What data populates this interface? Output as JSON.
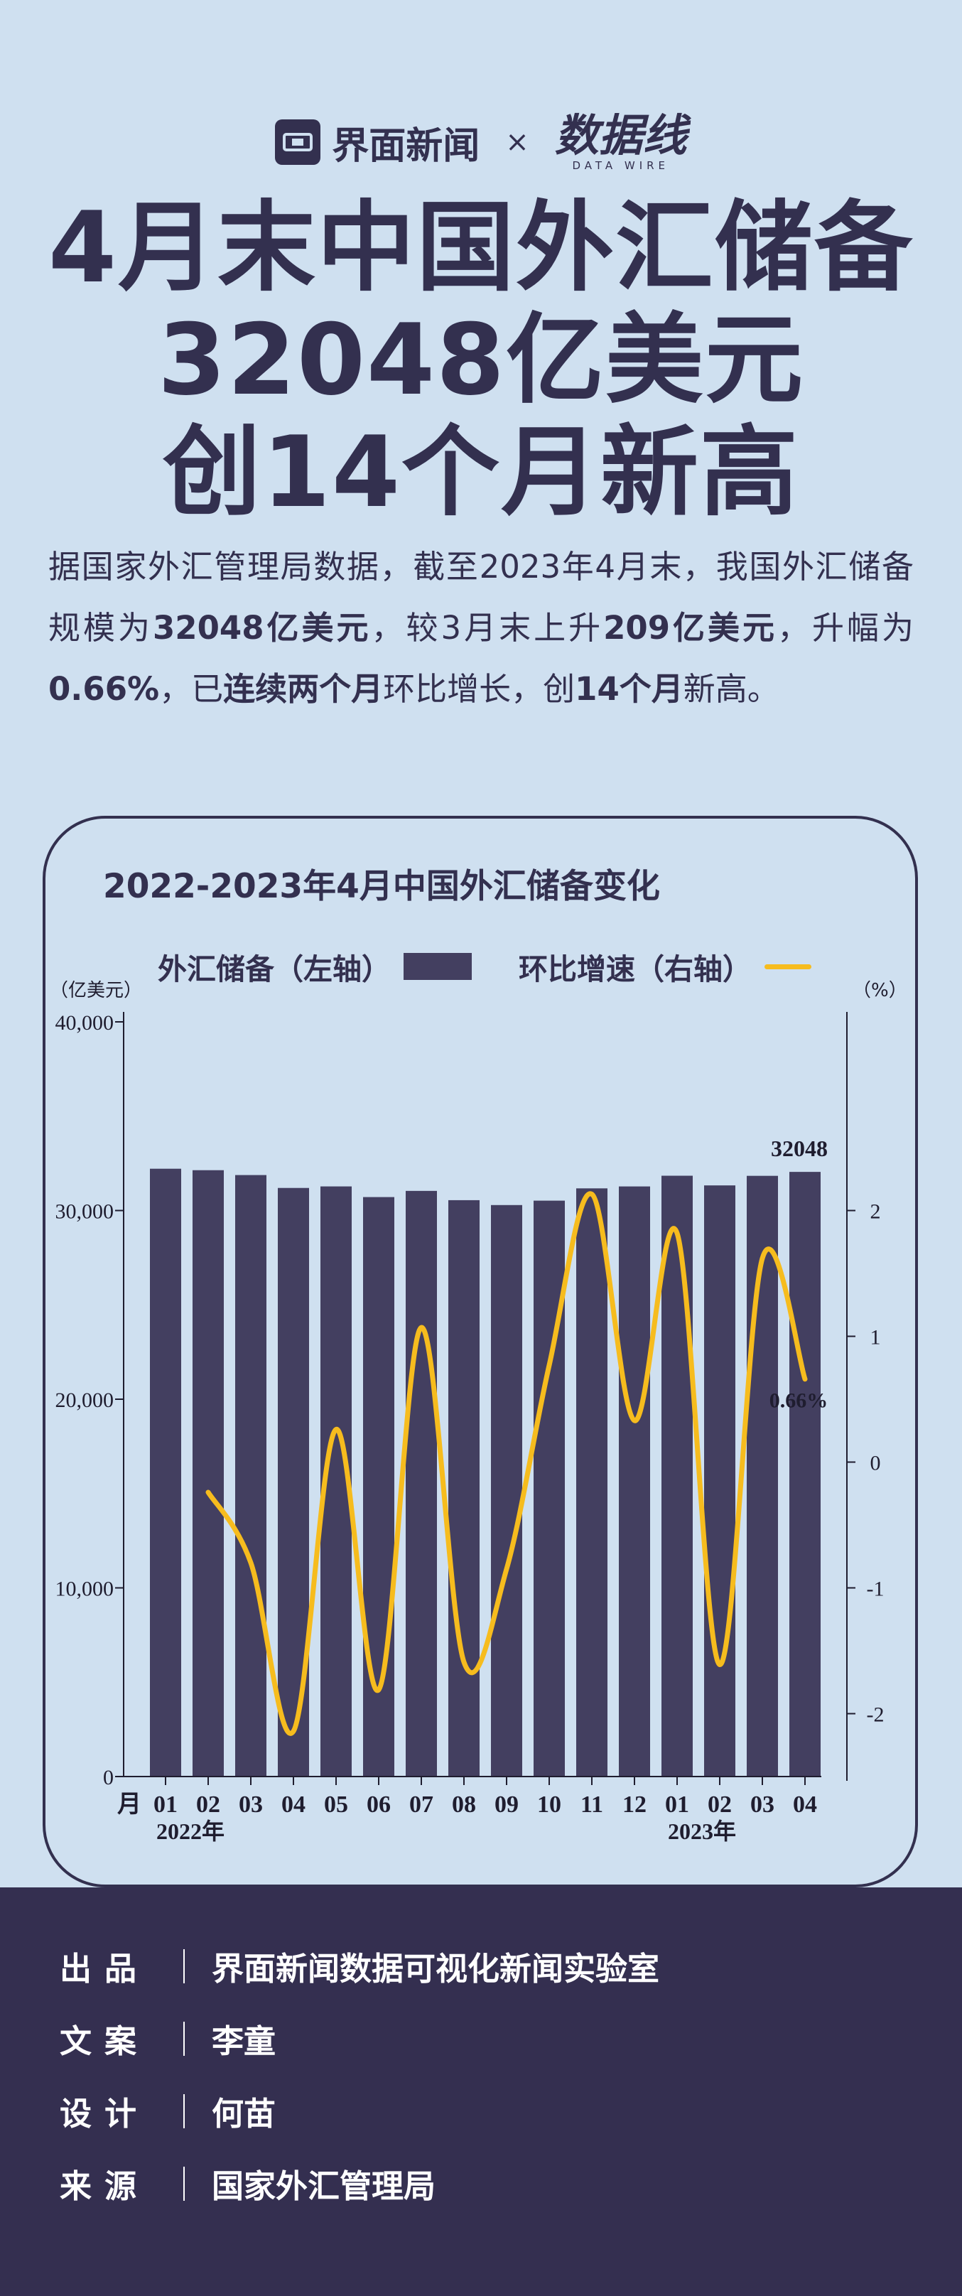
{
  "brand": {
    "name": "界面新闻",
    "separator": "×",
    "partner_cn": "数据线",
    "partner_en": "DATA WIRE"
  },
  "headline": {
    "line1": "4月末中国外汇储备",
    "line2": "32048亿美元",
    "line3": "创14个月新高"
  },
  "intro": {
    "p1": "据国家外汇管理局数据，截至2023年4月末，我国外汇储备规模为",
    "b1": "32048亿美元",
    "p2": "，较3月末上升",
    "b2": "209亿美元",
    "p3": "，升幅为",
    "b3": "0.66%",
    "p4": "，已",
    "b4": "连续两个月",
    "p5": "环比增长，创",
    "b5": "14个月",
    "p6": "新高。"
  },
  "chart": {
    "title": "2022-2023年4月中国外汇储备变化",
    "legend_bar": "外汇储备（左轴）",
    "legend_line": "环比增速（右轴）",
    "left_unit": "（亿美元）",
    "right_unit": "（%）",
    "x_axis_lead": "月",
    "year1": "2022年",
    "year2": "2023年",
    "bar_label": "32048",
    "line_label": "0.66%",
    "colors": {
      "bar": "#433f60",
      "line": "#f6bc1e",
      "axis": "#1f1d2f"
    }
  },
  "chart_data": {
    "type": "bar",
    "title": "2022-2023年4月中国外汇储备变化",
    "categories": [
      "01",
      "02",
      "03",
      "04",
      "05",
      "06",
      "07",
      "08",
      "09",
      "10",
      "11",
      "12",
      "01",
      "02",
      "03",
      "04"
    ],
    "series": [
      {
        "name": "外汇储备（左轴）",
        "type": "bar",
        "axis": "left",
        "values": [
          32216,
          32138,
          31880,
          31197,
          31278,
          30713,
          31041,
          30549,
          30290,
          30524,
          31175,
          31277,
          31845,
          31332,
          31839,
          32048
        ]
      },
      {
        "name": "环比增速（右轴）",
        "type": "line",
        "axis": "right",
        "values": [
          null,
          -0.24,
          -0.8,
          -2.14,
          0.26,
          -1.81,
          1.07,
          -1.59,
          -0.85,
          0.77,
          2.13,
          0.33,
          1.82,
          -1.61,
          1.62,
          0.66
        ]
      }
    ],
    "left_axis": {
      "label": "亿美元",
      "ylim": [
        0,
        40000
      ],
      "ticks": [
        0,
        10000,
        20000,
        30000,
        40000
      ],
      "tick_labels": [
        "0",
        "10,000",
        "20,000",
        "30,000",
        "40,000"
      ]
    },
    "right_axis": {
      "label": "%",
      "ylim": [
        -2.5,
        3.5
      ],
      "ticks": [
        -2,
        -1,
        0,
        1,
        2
      ],
      "tick_labels": [
        "-2",
        "-1",
        "0",
        "1",
        "2"
      ]
    },
    "annotations": [
      {
        "series": 0,
        "index": 15,
        "text": "32048"
      },
      {
        "series": 1,
        "index": 15,
        "text": "0.66%"
      }
    ]
  },
  "credits": [
    {
      "label": "出品",
      "value": "界面新闻数据可视化新闻实验室"
    },
    {
      "label": "文案",
      "value": "李童"
    },
    {
      "label": "设计",
      "value": "何苗"
    },
    {
      "label": "来源",
      "value": "国家外汇管理局"
    }
  ]
}
